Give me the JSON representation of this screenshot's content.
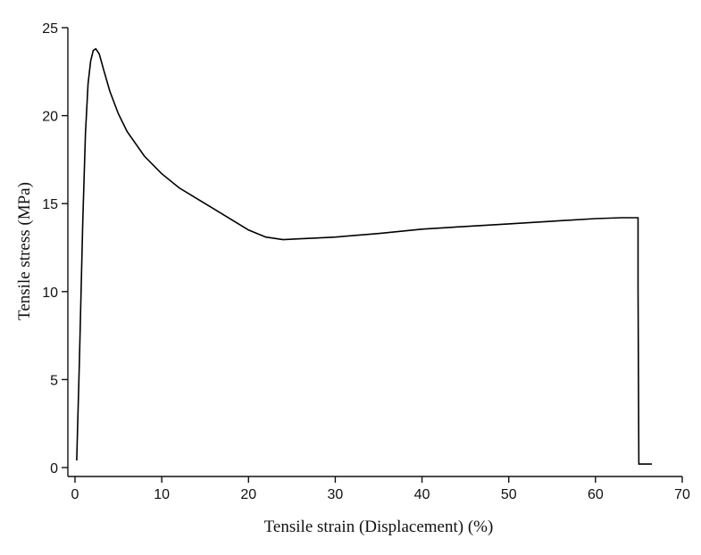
{
  "chart_data": {
    "type": "line",
    "title": "",
    "xlabel": "Tensile strain (Displacement) (%)",
    "ylabel": "Tensile stress (MPa)",
    "xlim": [
      0,
      70
    ],
    "ylim": [
      0,
      25
    ],
    "xticks": [
      0,
      10,
      20,
      30,
      40,
      50,
      60,
      70
    ],
    "yticks": [
      0,
      5,
      10,
      15,
      20,
      25
    ],
    "xtick_labels": [
      "0",
      "10",
      "20",
      "30",
      "40",
      "50",
      "60",
      "70"
    ],
    "ytick_labels": [
      "0",
      "5",
      "10",
      "15",
      "20",
      "25"
    ],
    "grid": false,
    "legend": "none",
    "series": [
      {
        "color": "#000000",
        "x": [
          0.2,
          0.5,
          0.9,
          1.2,
          1.5,
          1.8,
          2.1,
          2.4,
          2.8,
          3.3,
          4,
          5,
          6,
          8,
          10,
          12,
          14,
          16,
          18,
          20,
          22,
          24,
          26,
          28,
          30,
          35,
          40,
          45,
          50,
          55,
          60,
          63,
          64.9,
          64.9,
          65,
          65.5,
          66,
          66.5
        ],
        "y": [
          0.4,
          6,
          14,
          19,
          21.8,
          23.1,
          23.7,
          23.8,
          23.5,
          22.6,
          21.4,
          20.1,
          19.1,
          17.7,
          16.7,
          15.9,
          15.3,
          14.7,
          14.1,
          13.5,
          13.1,
          12.95,
          13,
          13.05,
          13.1,
          13.3,
          13.55,
          13.7,
          13.85,
          14,
          14.15,
          14.2,
          14.2,
          10.2,
          0.2,
          0.2,
          0.2,
          0.2
        ]
      }
    ]
  }
}
